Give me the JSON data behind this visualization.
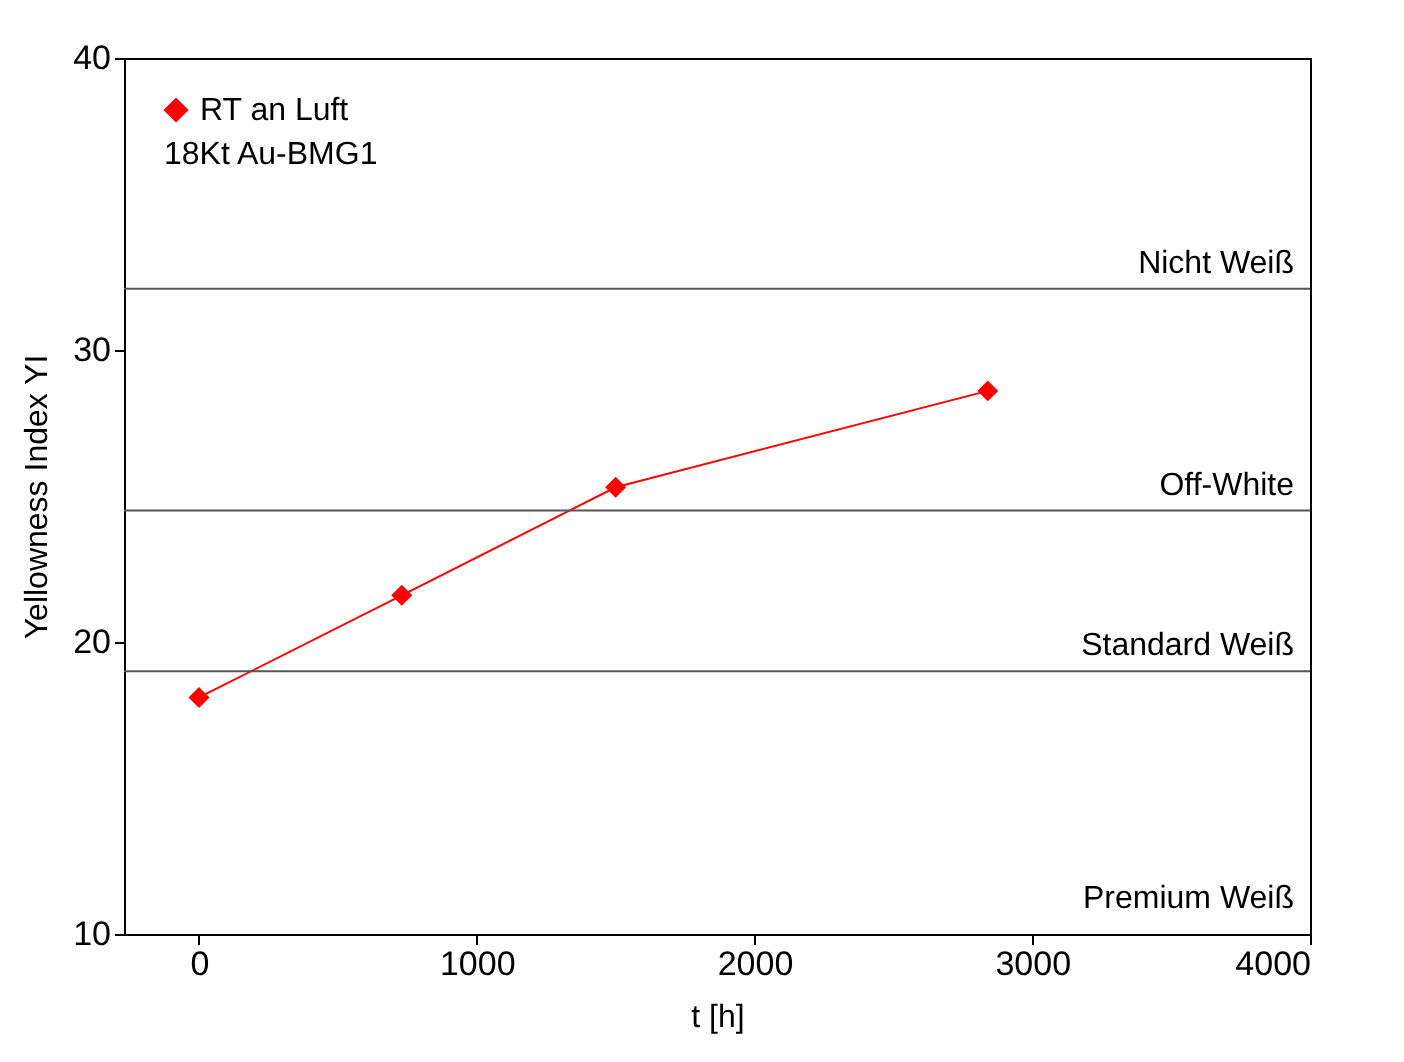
{
  "chart_data": {
    "type": "line",
    "xlabel": "t [h]",
    "ylabel": "Yellowness Index YI",
    "x": [
      0,
      730,
      1500,
      2840
    ],
    "series": [
      {
        "name": "RT an Luft",
        "color": "#ff0000",
        "values": [
          18.1,
          21.6,
          25.3,
          28.6
        ]
      }
    ],
    "xlim": [
      -270,
      4000
    ],
    "xticks": [
      0,
      1000,
      2000,
      3000,
      4000
    ],
    "ylim": [
      10,
      40
    ],
    "yticks": [
      10,
      20,
      30,
      40
    ],
    "marker": "diamond",
    "legend": "top left",
    "grid": false,
    "ref_lines": [
      {
        "axis": "y",
        "value": 32.1,
        "label": "Nicht Weiß",
        "color": "#555555"
      },
      {
        "axis": "y",
        "value": 24.5,
        "label": "Off-White",
        "color": "#555555"
      },
      {
        "axis": "y",
        "value": 19,
        "label": "Standard Weiß",
        "color": "#555555"
      }
    ],
    "annotations": [
      "18Kt Au-BMG1",
      "Premium Weiß"
    ]
  }
}
